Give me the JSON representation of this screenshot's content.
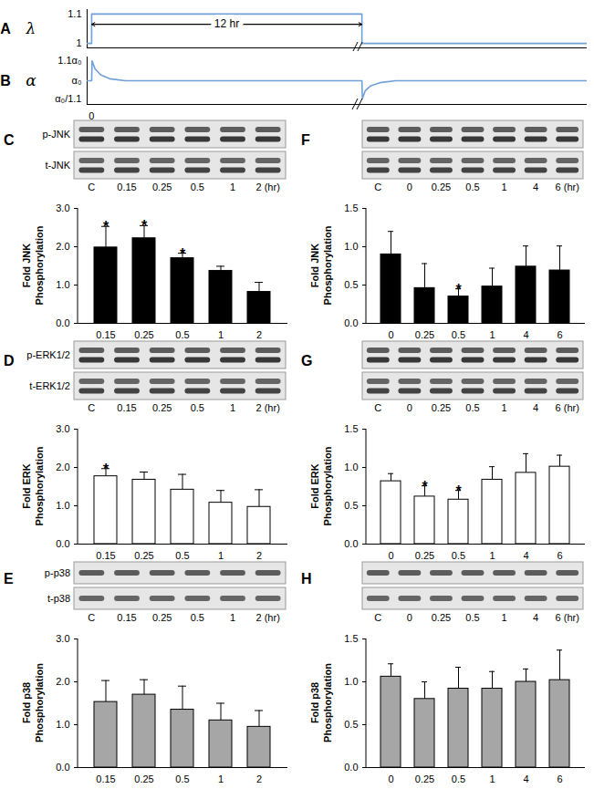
{
  "chart_data": [
    {
      "panel": "A",
      "type": "line",
      "ylabel": "λ",
      "x": [
        -0.2,
        0,
        0,
        12,
        12,
        22
      ],
      "values": [
        1,
        1,
        1.1,
        1.1,
        1,
        1
      ],
      "color": "#6fa0d8",
      "xlim": [
        -0.2,
        22
      ],
      "ylim": [
        0.985,
        1.115
      ],
      "yticks": [
        1,
        1.1
      ],
      "tick_labels": "y",
      "annotations": [
        {
          "text": "12 hr",
          "x1": 0,
          "x2": 12,
          "y": 1.065
        }
      ]
    },
    {
      "panel": "B",
      "type": "line",
      "ylabel": "α",
      "x": [
        -0.2,
        0,
        0.02,
        0.15,
        0.4,
        0.8,
        1.5,
        12,
        12.02,
        12.15,
        12.4,
        12.8,
        13.5,
        22
      ],
      "values": [
        1,
        1,
        1.1,
        1.06,
        1.03,
        1.01,
        1,
        1,
        0.9091,
        0.95,
        0.975,
        0.99,
        1,
        1
      ],
      "color": "#6fa0d8",
      "xlim": [
        -0.2,
        22
      ],
      "ylim": [
        0.88,
        1.12
      ],
      "xticks": [
        0
      ],
      "yticks": [
        {
          "value": 0.9091,
          "label": "α₀/1.1"
        },
        {
          "value": 1,
          "label": "α₀"
        },
        {
          "value": 1.1,
          "label": "1.1α₀"
        }
      ]
    },
    {
      "panel": "C",
      "type": "bar",
      "blot": {
        "row_labels": [
          "p-JNK",
          "t-JNK"
        ],
        "lanes": [
          "C",
          "0.15",
          "0.25",
          "0.5",
          "1",
          "2 (hr)"
        ]
      },
      "ylabel": "Fold JNK Phosphorylation",
      "categories": [
        "0.15",
        "0.25",
        "0.5",
        "1",
        "2"
      ],
      "values": [
        1.98,
        2.22,
        1.7,
        1.37,
        0.82
      ],
      "errors": [
        0.55,
        0.33,
        0.13,
        0.12,
        0.25
      ],
      "annotations": [
        {
          "x": "0.15",
          "text": "*"
        },
        {
          "x": "0.25",
          "text": "*"
        },
        {
          "x": "0.5",
          "text": "*"
        }
      ],
      "color": "#000000",
      "ylim": [
        0,
        3
      ],
      "yticks": [
        0,
        1,
        2,
        3
      ]
    },
    {
      "panel": "D",
      "type": "bar",
      "blot": {
        "row_labels": [
          "p-ERK1/2",
          "t-ERK1/2"
        ],
        "lanes": [
          "C",
          "0.15",
          "0.25",
          "0.5",
          "1",
          "2 (hr)"
        ]
      },
      "ylabel": "Fold ERK Phosphorylation",
      "categories": [
        "0.15",
        "0.25",
        "0.5",
        "1",
        "2"
      ],
      "values": [
        1.77,
        1.68,
        1.42,
        1.08,
        0.97
      ],
      "errors": [
        0.2,
        0.2,
        0.4,
        0.32,
        0.45
      ],
      "annotations": [
        {
          "x": "0.15",
          "text": "*"
        }
      ],
      "color": "#ffffff",
      "ylim": [
        0,
        3
      ],
      "yticks": [
        0,
        1,
        2,
        3
      ]
    },
    {
      "panel": "E",
      "type": "bar",
      "blot": {
        "row_labels": [
          "p-p38",
          "t-p38"
        ],
        "lanes": [
          "C",
          "0.15",
          "0.25",
          "0.5",
          "1",
          "2 (hr)"
        ]
      },
      "ylabel": "Fold p38 Phosphorylation",
      "categories": [
        "0.15",
        "0.25",
        "0.5",
        "1",
        "2"
      ],
      "values": [
        1.53,
        1.7,
        1.35,
        1.1,
        0.95
      ],
      "errors": [
        0.5,
        0.35,
        0.55,
        0.4,
        0.38
      ],
      "color": "#a6a6a6",
      "ylim": [
        0,
        3
      ],
      "yticks": [
        0,
        1,
        2,
        3
      ]
    },
    {
      "panel": "F",
      "type": "bar",
      "blot": {
        "lanes": [
          "C",
          "0",
          "0.25",
          "0.5",
          "1",
          "4",
          "6 (hr)"
        ]
      },
      "ylabel": "Fold JNK Phosphorylation",
      "categories": [
        "0",
        "0.25",
        "0.5",
        "1",
        "4",
        "6"
      ],
      "values": [
        0.9,
        0.46,
        0.35,
        0.48,
        0.74,
        0.69
      ],
      "errors": [
        0.3,
        0.32,
        0.1,
        0.24,
        0.27,
        0.32
      ],
      "annotations": [
        {
          "x": "0.5",
          "text": "*"
        }
      ],
      "color": "#000000",
      "ylim": [
        0,
        1.5
      ],
      "yticks": [
        0,
        0.5,
        1,
        1.5
      ]
    },
    {
      "panel": "G",
      "type": "bar",
      "blot": {
        "lanes": [
          "C",
          "0",
          "0.25",
          "0.5",
          "1",
          "4",
          "6 (hr)"
        ]
      },
      "ylabel": "Fold ERK Phosphorylation",
      "categories": [
        "0",
        "0.25",
        "0.5",
        "1",
        "4",
        "6"
      ],
      "values": [
        0.82,
        0.62,
        0.58,
        0.84,
        0.93,
        1.01
      ],
      "errors": [
        0.1,
        0.14,
        0.12,
        0.17,
        0.25,
        0.15
      ],
      "annotations": [
        {
          "x": "0.25",
          "text": "*"
        },
        {
          "x": "0.5",
          "text": "*"
        }
      ],
      "color": "#ffffff",
      "ylim": [
        0,
        1.5
      ],
      "yticks": [
        0,
        0.5,
        1,
        1.5
      ]
    },
    {
      "panel": "H",
      "type": "bar",
      "blot": {
        "lanes": [
          "C",
          "0",
          "0.25",
          "0.5",
          "1",
          "4",
          "6 (hr)"
        ]
      },
      "ylabel": "Fold p38 Phosphorylation",
      "categories": [
        "0",
        "0.25",
        "0.5",
        "1",
        "4",
        "6"
      ],
      "values": [
        1.06,
        0.8,
        0.92,
        0.92,
        1.0,
        1.02
      ],
      "errors": [
        0.15,
        0.2,
        0.25,
        0.2,
        0.15,
        0.35
      ],
      "color": "#a6a6a6",
      "ylim": [
        0,
        1.5
      ],
      "yticks": [
        0,
        0.5,
        1,
        1.5
      ]
    }
  ]
}
